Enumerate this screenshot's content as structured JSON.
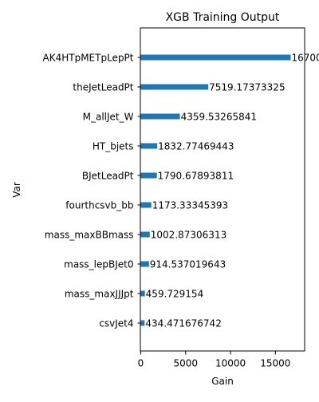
{
  "chart_data": {
    "type": "bar",
    "orientation": "horizontal",
    "title": "XGB Training Output",
    "xlabel": "Gain",
    "ylabel": "Var",
    "xlim": [
      0,
      18300
    ],
    "xticks": [
      0,
      5000,
      10000,
      15000
    ],
    "xtick_labels": [
      "0",
      "5000",
      "10000",
      "15000"
    ],
    "grid": false,
    "bar_color": "#1f77b4",
    "categories": [
      "AK4HTpMETpLepPt",
      "theJetLeadPt",
      "M_allJet_W",
      "HT_bjets",
      "BJetLeadPt",
      "fourthcsvb_bb",
      "mass_maxBBmass",
      "mass_lepBJet0",
      "mass_maxJJJpt",
      "csvJet4"
    ],
    "values": [
      16700,
      7519.17373325,
      4359.53265841,
      1832.77469443,
      1790.67893811,
      1173.33345393,
      1002.87306313,
      914.537019643,
      459.729154,
      434.471676742
    ],
    "value_labels": [
      "16700",
      "7519.17373325",
      "4359.53265841",
      "1832.77469443",
      "1790.67893811",
      "1173.33345393",
      "1002.87306313",
      "914.537019643",
      "459.729154",
      "434.471676742"
    ]
  }
}
